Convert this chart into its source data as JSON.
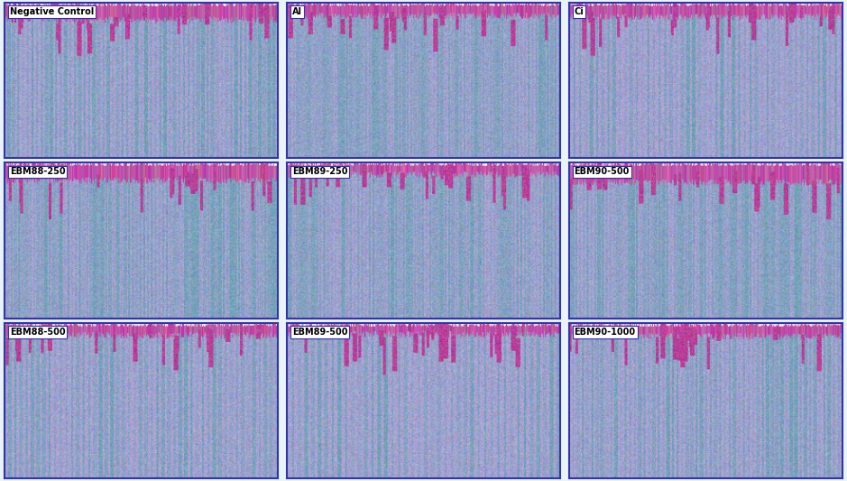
{
  "labels": [
    "Negative Control",
    "Al",
    "Ci",
    "EBM88-250",
    "EBM89-250",
    "EBM90-500",
    "EBM88-500",
    "EBM89-500",
    "EBM90-1000"
  ],
  "grid_rows": 3,
  "grid_cols": 3,
  "bg_color": "#e8f4f8",
  "border_color": "#3333aa",
  "label_bg": "#ffffff",
  "label_text_color": "#000000",
  "label_fontsize": 7,
  "label_fontweight": "bold",
  "fig_bg_color": "#ffffff",
  "panel_bg_colors": [
    "#b8c8e8",
    "#b0c0d8",
    "#b8c8e8",
    "#b8c8e8",
    "#b8c8e8",
    "#b8c8e8",
    "#b8c8e8",
    "#b8c8e8",
    "#b8c8e8"
  ]
}
